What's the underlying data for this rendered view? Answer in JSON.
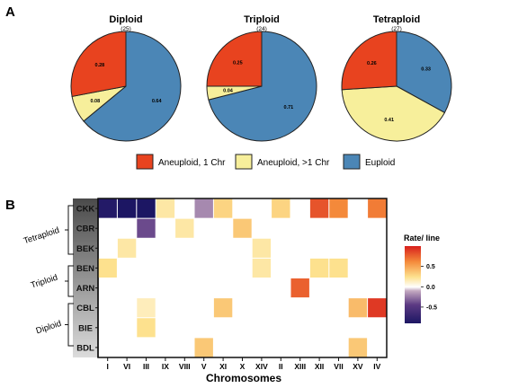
{
  "panel_a_label": "A",
  "panel_b_label": "B",
  "colors": {
    "aneuploid_1": "#e8431f",
    "aneuploid_gt1": "#f7ef9b",
    "euploid": "#4b86b6"
  },
  "chart_data": [
    {
      "type": "pie",
      "title": "Diploid",
      "subtitle": "(25)",
      "slices": [
        {
          "label": "Aneuploid, 1 Chr",
          "value": 0.28
        },
        {
          "label": "Aneuploid, >1 Chr",
          "value": 0.08
        },
        {
          "label": "Euploid",
          "value": 0.64
        }
      ]
    },
    {
      "type": "pie",
      "title": "Triploid",
      "subtitle": "(24)",
      "slices": [
        {
          "label": "Aneuploid, 1 Chr",
          "value": 0.25
        },
        {
          "label": "Aneuploid, >1 Chr",
          "value": 0.04
        },
        {
          "label": "Euploid",
          "value": 0.71
        }
      ]
    },
    {
      "type": "pie",
      "title": "Tetraploid",
      "subtitle": "(27)",
      "slices": [
        {
          "label": "Aneuploid, 1 Chr",
          "value": 0.26
        },
        {
          "label": "Aneuploid, >1 Chr",
          "value": 0.41
        },
        {
          "label": "Euploid",
          "value": 0.33
        }
      ]
    },
    {
      "type": "heatmap",
      "xlabel": "Chromosomes",
      "x": [
        "I",
        "VI",
        "III",
        "IX",
        "VIII",
        "V",
        "XI",
        "X",
        "XIV",
        "II",
        "XIII",
        "XII",
        "VII",
        "XV",
        "IV"
      ],
      "y": [
        "CKK",
        "CBR",
        "BEK",
        "BEN",
        "ARN",
        "CBL",
        "BIE",
        "BDL"
      ],
      "groups": [
        {
          "label": "Tetraploid",
          "rows": [
            "CKK",
            "CBR",
            "BEK"
          ]
        },
        {
          "label": "Triploid",
          "rows": [
            "BEN",
            "ARN"
          ]
        },
        {
          "label": "Diploid",
          "rows": [
            "CBL",
            "BIE",
            "BDL"
          ]
        }
      ],
      "values": [
        [
          -0.85,
          -0.9,
          -0.9,
          0.2,
          null,
          -0.2,
          0.3,
          null,
          null,
          0.3,
          null,
          0.8,
          0.6,
          null,
          0.65
        ],
        [
          null,
          null,
          -0.4,
          null,
          0.2,
          null,
          null,
          0.35,
          null,
          null,
          null,
          null,
          null,
          null,
          null
        ],
        [
          null,
          0.2,
          null,
          null,
          null,
          null,
          null,
          null,
          0.2,
          null,
          null,
          null,
          null,
          null,
          null
        ],
        [
          0.25,
          null,
          null,
          null,
          null,
          null,
          null,
          null,
          0.2,
          null,
          null,
          0.25,
          0.25,
          null,
          null
        ],
        [
          null,
          null,
          null,
          null,
          null,
          null,
          null,
          null,
          null,
          null,
          0.75,
          null,
          null,
          null,
          null
        ],
        [
          null,
          null,
          0.15,
          null,
          null,
          null,
          0.35,
          null,
          null,
          null,
          null,
          null,
          null,
          0.4,
          0.9
        ],
        [
          null,
          null,
          0.25,
          null,
          null,
          null,
          null,
          null,
          null,
          null,
          null,
          null,
          null,
          null,
          null
        ],
        [
          null,
          null,
          null,
          null,
          null,
          0.35,
          null,
          null,
          null,
          null,
          null,
          null,
          null,
          0.35,
          null
        ]
      ],
      "colorbar": {
        "title": "Rate/ line",
        "range": [
          -0.9,
          1.0
        ],
        "ticks": [
          0.5,
          0.0,
          -0.5
        ],
        "tick_labels": [
          "0.5",
          "0.0",
          "-0.5"
        ]
      }
    }
  ]
}
